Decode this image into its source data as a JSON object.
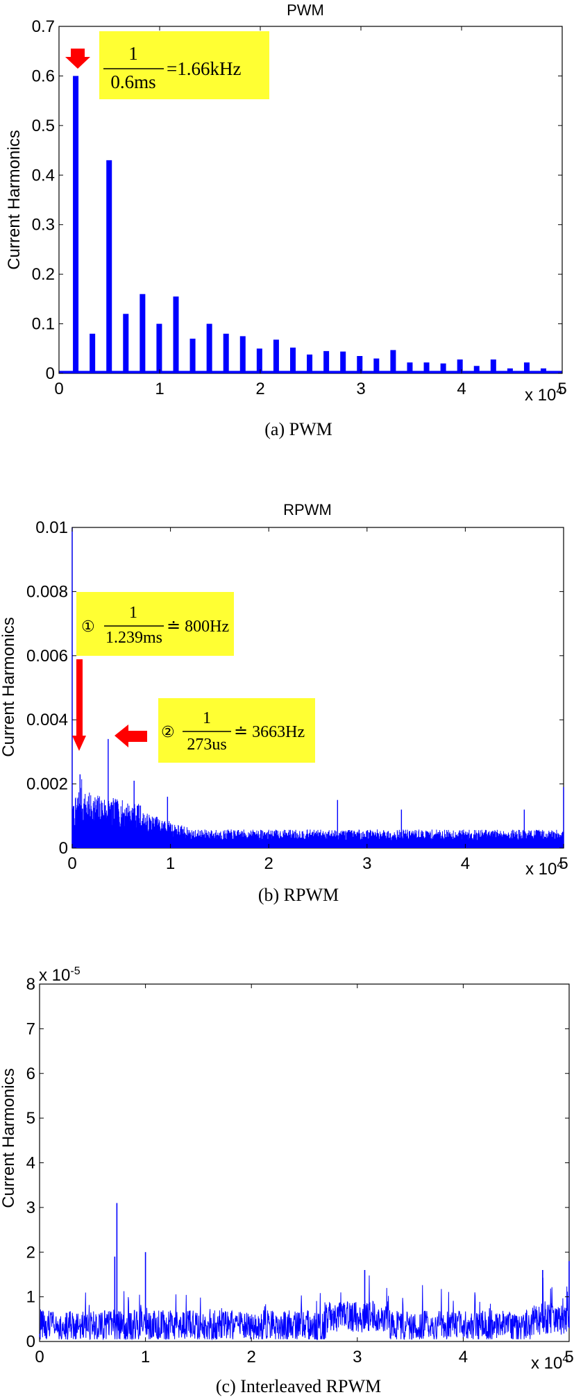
{
  "chart_data": [
    {
      "type": "bar",
      "title": "PWM",
      "caption": "(a)  PWM",
      "ylabel": "Current Harmonics",
      "xlim": [
        0,
        50000
      ],
      "ylim": [
        0,
        0.7
      ],
      "xticks": [
        "0",
        "1",
        "2",
        "3",
        "4",
        "5"
      ],
      "yticks": [
        "0",
        "0.1",
        "0.2",
        "0.3",
        "0.4",
        "0.5",
        "0.6",
        "0.7"
      ],
      "x_exponent": {
        "base": "x 10",
        "exp": "4"
      },
      "x": [
        1660,
        3320,
        4980,
        6640,
        8300,
        9960,
        11620,
        13280,
        14940,
        16600,
        18260,
        19920,
        21580,
        23240,
        24900,
        26560,
        28220,
        29880,
        31540,
        33200,
        34860,
        36520,
        38180,
        39840,
        41500,
        43160,
        44820,
        46480,
        48140
      ],
      "values": [
        0.6,
        0.08,
        0.43,
        0.12,
        0.16,
        0.1,
        0.155,
        0.07,
        0.1,
        0.08,
        0.075,
        0.05,
        0.068,
        0.052,
        0.038,
        0.045,
        0.044,
        0.035,
        0.03,
        0.047,
        0.022,
        0.022,
        0.02,
        0.028,
        0.015,
        0.028,
        0.01,
        0.022,
        0.01
      ],
      "floor": 0.005,
      "annotation": {
        "num": "1",
        "den": "0.6ms",
        "rhs": "=1.66kHz"
      }
    },
    {
      "type": "line",
      "title": "RPWM",
      "caption": "(b)  RPWM",
      "ylabel": "Current Harmonics",
      "xlim": [
        0,
        50000
      ],
      "ylim": [
        0,
        0.01
      ],
      "xticks": [
        "0",
        "1",
        "2",
        "3",
        "4",
        "5"
      ],
      "yticks": [
        "0",
        "0.002",
        "0.004",
        "0.006",
        "0.008",
        "0.01"
      ],
      "x_exponent": {
        "base": "x 10",
        "exp": "4"
      },
      "spikes": [
        {
          "x": 0,
          "y": 0.01
        },
        {
          "x": 800,
          "y": 0.0023
        },
        {
          "x": 3663,
          "y": 0.0034
        },
        {
          "x": 6300,
          "y": 0.0021
        },
        {
          "x": 9700,
          "y": 0.0016
        },
        {
          "x": 27000,
          "y": 0.0015
        },
        {
          "x": 33500,
          "y": 0.0012
        },
        {
          "x": 46000,
          "y": 0.0012
        },
        {
          "x": 50000,
          "y": 0.0019
        }
      ],
      "annotation1": {
        "mark": "①",
        "num": "1",
        "den": "1.239ms",
        "rhs": "≐ 800Hz"
      },
      "annotation2": {
        "mark": "②",
        "num": "1",
        "den": "273us",
        "rhs": "≐ 3663Hz"
      }
    },
    {
      "type": "line",
      "title": "",
      "caption": "(c)  Interleaved  RPWM",
      "ylabel": "Current Harmonics",
      "xlim": [
        0,
        50000
      ],
      "ylim": [
        0,
        8
      ],
      "xticks": [
        "0",
        "1",
        "2",
        "3",
        "4",
        "5"
      ],
      "yticks": [
        "0",
        "1",
        "2",
        "3",
        "4",
        "5",
        "6",
        "7",
        "8"
      ],
      "x_exponent": {
        "base": "x 10",
        "exp": "4"
      },
      "y_exponent": {
        "base": "x 10",
        "exp": "-5"
      },
      "spikes": [
        {
          "x": 7300,
          "y": 3.1
        },
        {
          "x": 7100,
          "y": 1.9
        },
        {
          "x": 10000,
          "y": 2.0
        },
        {
          "x": 30700,
          "y": 1.6
        },
        {
          "x": 47500,
          "y": 1.6
        },
        {
          "x": 50000,
          "y": 1.8
        }
      ]
    }
  ],
  "colors": {
    "series": "#0000ff",
    "annotation_bg": "#ffff33",
    "arrow": "#ff0000"
  }
}
